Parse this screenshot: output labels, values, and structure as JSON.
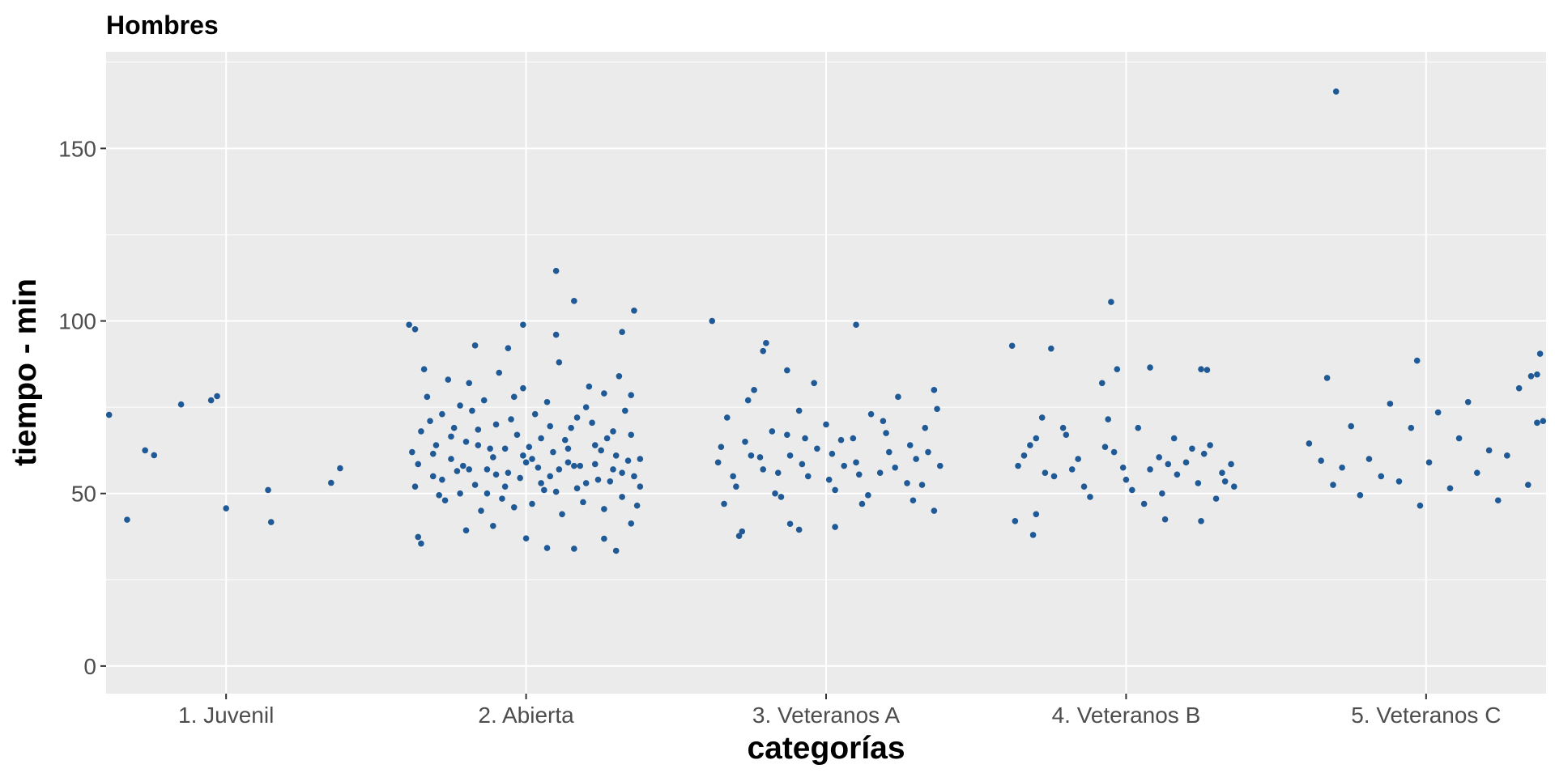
{
  "chart_data": {
    "type": "scatter",
    "jitter": true,
    "title": "Hombres",
    "xlabel": "categorías",
    "ylabel": "tiempo - min",
    "categories": [
      "1. Juvenil",
      "2. Abierta",
      "3. Veteranos A",
      "4. Veteranos B",
      "5. Veteranos C"
    ],
    "ylim": [
      -8,
      178
    ],
    "yticks": [
      0,
      50,
      100,
      150
    ],
    "grid": true,
    "point_color": "#1f5a96",
    "panel_color": "#ebebeb",
    "grid_color": "#ffffff",
    "series": [
      {
        "category": "1. Juvenil",
        "points": [
          [
            -0.39,
            72.8
          ],
          [
            -0.33,
            42.4
          ],
          [
            -0.27,
            62.5
          ],
          [
            -0.24,
            61.1
          ],
          [
            -0.15,
            75.8
          ],
          [
            -0.05,
            77.0
          ],
          [
            -0.03,
            78.2
          ],
          [
            0.0,
            45.7
          ],
          [
            0.14,
            51.0
          ],
          [
            0.15,
            41.7
          ],
          [
            0.35,
            53.1
          ],
          [
            0.38,
            57.3
          ]
        ]
      },
      {
        "category": "2. Abierta",
        "points": [
          [
            0.1,
            114.5
          ],
          [
            0.16,
            105.8
          ],
          [
            0.36,
            103.0
          ],
          [
            -0.39,
            98.9
          ],
          [
            -0.37,
            97.6
          ],
          [
            -0.01,
            98.9
          ],
          [
            0.32,
            96.8
          ],
          [
            0.1,
            96.0
          ],
          [
            -0.17,
            92.9
          ],
          [
            -0.06,
            92.1
          ],
          [
            0.0,
            37.0
          ],
          [
            0.07,
            34.2
          ],
          [
            0.16,
            34.0
          ],
          [
            0.3,
            33.4
          ],
          [
            0.26,
            36.9
          ],
          [
            -0.35,
            35.5
          ],
          [
            -0.36,
            37.4
          ],
          [
            -0.2,
            39.3
          ],
          [
            -0.11,
            40.6
          ],
          [
            0.35,
            41.3
          ],
          [
            -0.38,
            62.0
          ],
          [
            -0.35,
            68.0
          ],
          [
            -0.31,
            55.0
          ],
          [
            -0.28,
            73.0
          ],
          [
            -0.25,
            60.0
          ],
          [
            -0.22,
            50.0
          ],
          [
            -0.19,
            82.0
          ],
          [
            -0.16,
            64.0
          ],
          [
            -0.13,
            57.0
          ],
          [
            -0.1,
            70.0
          ],
          [
            -0.07,
            52.0
          ],
          [
            -0.04,
            78.0
          ],
          [
            -0.01,
            61.0
          ],
          [
            0.02,
            47.0
          ],
          [
            0.05,
            66.0
          ],
          [
            0.08,
            55.0
          ],
          [
            0.11,
            88.0
          ],
          [
            0.14,
            59.0
          ],
          [
            0.17,
            72.0
          ],
          [
            0.2,
            53.0
          ],
          [
            0.23,
            64.0
          ],
          [
            0.26,
            79.0
          ],
          [
            0.29,
            57.0
          ],
          [
            0.32,
            49.0
          ],
          [
            0.35,
            67.0
          ],
          [
            0.38,
            60.0
          ],
          [
            -0.37,
            52.0
          ],
          [
            -0.33,
            78.0
          ],
          [
            -0.3,
            64.0
          ],
          [
            -0.27,
            48.0
          ],
          [
            -0.24,
            69.0
          ],
          [
            -0.21,
            58.0
          ],
          [
            -0.18,
            74.0
          ],
          [
            -0.15,
            45.0
          ],
          [
            -0.12,
            63.0
          ],
          [
            -0.09,
            85.0
          ],
          [
            -0.06,
            56.0
          ],
          [
            -0.03,
            67.0
          ],
          [
            0.0,
            59.0
          ],
          [
            0.03,
            73.0
          ],
          [
            0.06,
            51.0
          ],
          [
            0.09,
            62.0
          ],
          [
            0.12,
            44.0
          ],
          [
            0.15,
            69.0
          ],
          [
            0.18,
            58.0
          ],
          [
            0.21,
            81.0
          ],
          [
            0.24,
            54.0
          ],
          [
            0.27,
            66.0
          ],
          [
            0.3,
            61.0
          ],
          [
            0.33,
            74.0
          ],
          [
            0.36,
            55.0
          ],
          [
            -0.36,
            58.5
          ],
          [
            -0.32,
            71.0
          ],
          [
            -0.29,
            49.5
          ],
          [
            -0.26,
            83.0
          ],
          [
            -0.23,
            56.5
          ],
          [
            -0.2,
            65.0
          ],
          [
            -0.17,
            52.5
          ],
          [
            -0.14,
            77.0
          ],
          [
            -0.11,
            60.5
          ],
          [
            -0.08,
            48.5
          ],
          [
            -0.05,
            71.5
          ],
          [
            -0.02,
            54.5
          ],
          [
            0.01,
            63.5
          ],
          [
            0.04,
            57.5
          ],
          [
            0.07,
            76.5
          ],
          [
            0.1,
            50.5
          ],
          [
            0.13,
            65.5
          ],
          [
            0.16,
            58.0
          ],
          [
            0.19,
            47.5
          ],
          [
            0.22,
            70.5
          ],
          [
            0.25,
            62.5
          ],
          [
            0.28,
            53.5
          ],
          [
            0.31,
            84.0
          ],
          [
            0.34,
            59.5
          ],
          [
            0.37,
            46.5
          ],
          [
            -0.34,
            86.0
          ],
          [
            -0.31,
            61.5
          ],
          [
            -0.28,
            54.0
          ],
          [
            -0.25,
            66.5
          ],
          [
            -0.22,
            75.5
          ],
          [
            -0.19,
            57.0
          ],
          [
            -0.16,
            68.5
          ],
          [
            -0.13,
            50.0
          ],
          [
            -0.1,
            55.5
          ],
          [
            -0.07,
            63.0
          ],
          [
            -0.04,
            46.0
          ],
          [
            -0.01,
            80.5
          ],
          [
            0.02,
            60.0
          ],
          [
            0.05,
            53.0
          ],
          [
            0.08,
            69.5
          ],
          [
            0.11,
            57.0
          ],
          [
            0.14,
            63.0
          ],
          [
            0.17,
            51.5
          ],
          [
            0.2,
            75.0
          ],
          [
            0.23,
            58.5
          ],
          [
            0.26,
            45.5
          ],
          [
            0.29,
            68.0
          ],
          [
            0.32,
            56.0
          ],
          [
            0.35,
            78.5
          ],
          [
            0.38,
            52.0
          ]
        ]
      },
      {
        "category": "3. Veteranos A",
        "points": [
          [
            -0.38,
            100.0
          ],
          [
            0.1,
            98.9
          ],
          [
            -0.29,
            37.7
          ],
          [
            -0.28,
            39.0
          ],
          [
            -0.12,
            41.2
          ],
          [
            -0.09,
            39.5
          ],
          [
            0.03,
            40.3
          ],
          [
            -0.2,
            93.6
          ],
          [
            -0.21,
            91.3
          ],
          [
            -0.13,
            85.7
          ],
          [
            -0.36,
            59.0
          ],
          [
            -0.33,
            72.0
          ],
          [
            -0.3,
            52.0
          ],
          [
            -0.27,
            65.0
          ],
          [
            -0.24,
            80.0
          ],
          [
            -0.21,
            57.0
          ],
          [
            -0.18,
            68.0
          ],
          [
            -0.15,
            49.0
          ],
          [
            -0.12,
            61.0
          ],
          [
            -0.09,
            74.0
          ],
          [
            -0.06,
            55.0
          ],
          [
            -0.03,
            63.0
          ],
          [
            0.0,
            70.0
          ],
          [
            0.03,
            51.0
          ],
          [
            0.06,
            58.0
          ],
          [
            0.09,
            66.0
          ],
          [
            0.12,
            47.0
          ],
          [
            0.15,
            73.0
          ],
          [
            0.18,
            56.0
          ],
          [
            0.21,
            62.0
          ],
          [
            0.24,
            78.0
          ],
          [
            0.27,
            53.0
          ],
          [
            0.3,
            60.0
          ],
          [
            0.33,
            69.0
          ],
          [
            0.36,
            45.0
          ],
          [
            0.38,
            58.0
          ],
          [
            -0.35,
            63.5
          ],
          [
            -0.31,
            55.0
          ],
          [
            -0.26,
            77.0
          ],
          [
            -0.22,
            60.5
          ],
          [
            -0.17,
            50.0
          ],
          [
            -0.13,
            67.0
          ],
          [
            -0.08,
            58.5
          ],
          [
            -0.04,
            82.0
          ],
          [
            0.01,
            54.0
          ],
          [
            0.05,
            65.5
          ],
          [
            0.1,
            59.0
          ],
          [
            0.14,
            49.5
          ],
          [
            0.19,
            71.0
          ],
          [
            0.23,
            57.5
          ],
          [
            0.28,
            64.0
          ],
          [
            0.32,
            52.5
          ],
          [
            0.37,
            74.5
          ],
          [
            -0.34,
            47.0
          ],
          [
            -0.25,
            61.0
          ],
          [
            -0.16,
            56.0
          ],
          [
            -0.07,
            66.0
          ],
          [
            0.02,
            61.5
          ],
          [
            0.11,
            55.5
          ],
          [
            0.2,
            67.5
          ],
          [
            0.29,
            48.0
          ],
          [
            0.34,
            62.0
          ],
          [
            0.36,
            80.0
          ]
        ]
      },
      {
        "category": "4. Veteranos B",
        "points": [
          [
            -0.05,
            105.5
          ],
          [
            -0.38,
            92.8
          ],
          [
            -0.25,
            92.0
          ],
          [
            -0.03,
            86.0
          ],
          [
            0.08,
            86.5
          ],
          [
            0.27,
            85.8
          ],
          [
            0.25,
            86.0
          ],
          [
            -0.37,
            42.0
          ],
          [
            -0.31,
            38.0
          ],
          [
            -0.3,
            44.0
          ],
          [
            0.13,
            42.5
          ],
          [
            0.25,
            42.0
          ],
          [
            -0.36,
            58.0
          ],
          [
            -0.32,
            64.0
          ],
          [
            -0.28,
            72.0
          ],
          [
            -0.24,
            55.0
          ],
          [
            -0.2,
            67.0
          ],
          [
            -0.16,
            60.0
          ],
          [
            -0.12,
            49.0
          ],
          [
            -0.08,
            82.0
          ],
          [
            -0.04,
            62.0
          ],
          [
            0.0,
            54.0
          ],
          [
            0.04,
            69.0
          ],
          [
            0.08,
            57.0
          ],
          [
            0.12,
            50.0
          ],
          [
            0.16,
            66.0
          ],
          [
            0.2,
            59.0
          ],
          [
            0.24,
            53.0
          ],
          [
            0.28,
            64.0
          ],
          [
            0.32,
            56.0
          ],
          [
            0.36,
            52.0
          ],
          [
            -0.34,
            61.0
          ],
          [
            -0.27,
            56.0
          ],
          [
            -0.21,
            69.0
          ],
          [
            -0.14,
            52.0
          ],
          [
            -0.07,
            63.5
          ],
          [
            -0.01,
            57.5
          ],
          [
            0.06,
            47.0
          ],
          [
            0.11,
            60.5
          ],
          [
            0.17,
            55.5
          ],
          [
            0.22,
            63.0
          ],
          [
            0.3,
            48.5
          ],
          [
            0.35,
            58.5
          ],
          [
            -0.3,
            66.0
          ],
          [
            -0.18,
            57.0
          ],
          [
            -0.06,
            71.5
          ],
          [
            0.02,
            51.0
          ],
          [
            0.14,
            58.5
          ],
          [
            0.26,
            61.5
          ],
          [
            0.33,
            53.5
          ]
        ]
      },
      {
        "category": "5. Veteranos C",
        "points": [
          [
            -0.3,
            166.5
          ],
          [
            -0.33,
            83.5
          ],
          [
            -0.03,
            88.5
          ],
          [
            0.38,
            90.5
          ],
          [
            0.37,
            84.5
          ],
          [
            0.35,
            84.0
          ],
          [
            -0.39,
            64.5
          ],
          [
            -0.35,
            59.5
          ],
          [
            -0.31,
            52.5
          ],
          [
            -0.28,
            57.5
          ],
          [
            -0.25,
            69.5
          ],
          [
            -0.22,
            49.5
          ],
          [
            -0.19,
            60.0
          ],
          [
            -0.15,
            55.0
          ],
          [
            -0.12,
            76.0
          ],
          [
            -0.09,
            53.5
          ],
          [
            -0.05,
            69.0
          ],
          [
            -0.02,
            46.5
          ],
          [
            0.01,
            59.0
          ],
          [
            0.04,
            73.5
          ],
          [
            0.08,
            51.5
          ],
          [
            0.11,
            66.0
          ],
          [
            0.14,
            76.5
          ],
          [
            0.17,
            56.0
          ],
          [
            0.21,
            62.5
          ],
          [
            0.24,
            48.0
          ],
          [
            0.27,
            61.0
          ],
          [
            0.31,
            80.5
          ],
          [
            0.34,
            52.5
          ],
          [
            0.37,
            70.5
          ],
          [
            0.39,
            71.0
          ]
        ]
      }
    ]
  }
}
